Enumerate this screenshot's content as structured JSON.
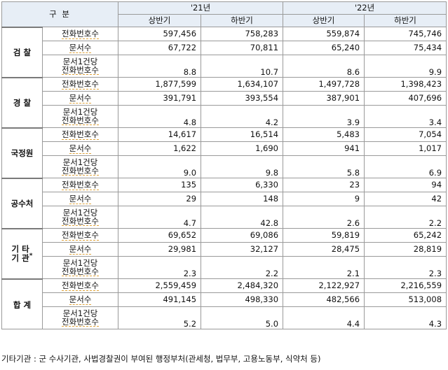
{
  "header": {
    "corner": "구 분",
    "years": [
      "'21년",
      "'22년"
    ],
    "halves": [
      "상반기",
      "하반기",
      "상반기",
      "하반기"
    ]
  },
  "groups": [
    {
      "name": "검 찰",
      "sup": "",
      "rows": [
        {
          "label": "전화번호수",
          "values": [
            "597,456",
            "758,283",
            "559,874",
            "745,746"
          ]
        },
        {
          "label": "문서수",
          "values": [
            "67,722",
            "70,811",
            "65,240",
            "75,434"
          ]
        },
        {
          "label": [
            "문서1건당",
            "전화번호수"
          ],
          "values": [
            "8.8",
            "10.7",
            "8.6",
            "9.9"
          ]
        }
      ]
    },
    {
      "name": "경 찰",
      "sup": "",
      "rows": [
        {
          "label": "전화번호수",
          "values": [
            "1,877,599",
            "1,634,107",
            "1,497,728",
            "1,398,423"
          ]
        },
        {
          "label": "문서수",
          "values": [
            "391,791",
            "393,554",
            "387,901",
            "407,696"
          ]
        },
        {
          "label": [
            "문서1건당",
            "전화번호수"
          ],
          "values": [
            "4.8",
            "4.2",
            "3.9",
            "3.4"
          ]
        }
      ]
    },
    {
      "name": "국정원",
      "sup": "",
      "rows": [
        {
          "label": "전화번호수",
          "values": [
            "14,617",
            "16,514",
            "5,483",
            "7,054"
          ]
        },
        {
          "label": "문서수",
          "values": [
            "1,622",
            "1,690",
            "941",
            "1,017"
          ]
        },
        {
          "label": [
            "문서1건당",
            "전화번호수"
          ],
          "values": [
            "9.0",
            "9.8",
            "5.8",
            "6.9"
          ]
        }
      ]
    },
    {
      "name": "공수처",
      "sup": "",
      "rows": [
        {
          "label": "전화번호수",
          "values": [
            "135",
            "6,330",
            "23",
            "94"
          ]
        },
        {
          "label": "문서수",
          "values": [
            "29",
            "148",
            "9",
            "42"
          ]
        },
        {
          "label": [
            "문서1건당",
            "전화번호수"
          ],
          "values": [
            "4.7",
            "42.8",
            "2.6",
            "2.2"
          ]
        }
      ]
    },
    {
      "name": "기 타\n기 관",
      "sup": "*",
      "rows": [
        {
          "label": "전화번호수",
          "values": [
            "69,652",
            "69,086",
            "59,819",
            "65,242"
          ]
        },
        {
          "label": "문서수",
          "values": [
            "29,981",
            "32,127",
            "28,475",
            "28,819"
          ]
        },
        {
          "label": [
            "문서1건당",
            "전화번호수"
          ],
          "values": [
            "2.3",
            "2.2",
            "2.1",
            "2.3"
          ]
        }
      ]
    },
    {
      "name": "합 계",
      "sup": "",
      "rows": [
        {
          "label": "전화번호수",
          "values": [
            "2,559,459",
            "2,484,320",
            "2,122,927",
            "2,216,559"
          ]
        },
        {
          "label": "문서수",
          "values": [
            "491,145",
            "498,330",
            "482,566",
            "513,008"
          ]
        },
        {
          "label": [
            "문서1건당",
            "전화번호수"
          ],
          "values": [
            "5.2",
            "5.0",
            "4.4",
            "4.3"
          ]
        }
      ]
    }
  ],
  "footnote": "기타기관 : 군 수사기관, 사법경찰권이 부여된 행정부처(관세청, 법무부, 고용노동부, 식약처 등)",
  "colors": {
    "header_bg": "#e7eef6",
    "grid": "#9a9a9a",
    "underline": "#e0a33a"
  }
}
